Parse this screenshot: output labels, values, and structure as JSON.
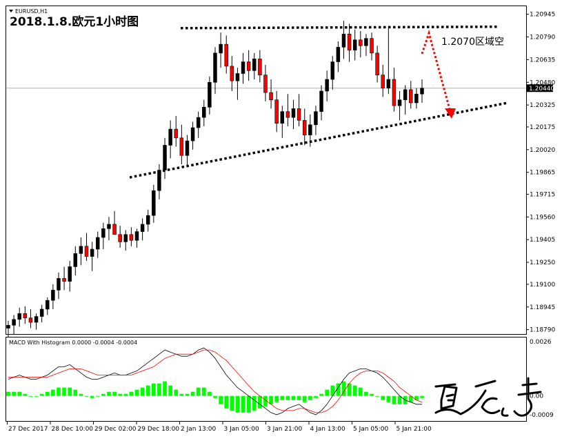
{
  "chart_data": {
    "type": "candlestick",
    "symbol_label": "EURUSD,H1",
    "title": "2018.1.8.欧元1小时图",
    "price_axis": {
      "ticks": [
        "1.20945",
        "1.20790",
        "1.20635",
        "1.20480",
        "1.20325",
        "1.20175",
        "1.20020",
        "1.19865",
        "1.19715",
        "1.19560",
        "1.19405",
        "1.19250",
        "1.19100",
        "1.18945",
        "1.18790"
      ],
      "range": [
        1.1876,
        1.21
      ]
    },
    "current_price": "1.20440",
    "time_axis": [
      "27 Dec 2017",
      "28 Dec 10:00",
      "29 Dec 02:00",
      "29 Dec 18:00",
      "2 Jan 13:00",
      "3 Jan 05:00",
      "3 Jan 21:00",
      "4 Jan 13:00",
      "5 Jan 05:00",
      "5 Jan 21:00"
    ],
    "colors": {
      "bull": "#000000",
      "bear": "#ff0000",
      "trendline": "#000000",
      "arrow": "#ff0000",
      "macd_hist": "#00ff00",
      "macd_signal": "#ff0000"
    },
    "annotation": "1.2070区域空",
    "trendlines": [
      {
        "name": "resistance",
        "from": [
          "2 Jan 06:00",
          1.2085
        ],
        "to": [
          "6 Jan 02:00",
          1.2086
        ]
      },
      {
        "name": "support",
        "from": [
          "29 Dec 16:00",
          1.1983
        ],
        "to": [
          "6 Jan 02:00",
          1.2034
        ]
      }
    ],
    "candles": [
      [
        1.188,
        1.1885,
        1.1874,
        1.1882
      ],
      [
        1.1882,
        1.1889,
        1.1876,
        1.1886
      ],
      [
        1.1886,
        1.1894,
        1.1881,
        1.189
      ],
      [
        1.189,
        1.1895,
        1.1883,
        1.1887
      ],
      [
        1.1887,
        1.1893,
        1.188,
        1.1884
      ],
      [
        1.1884,
        1.189,
        1.1879,
        1.1888
      ],
      [
        1.1888,
        1.1896,
        1.1884,
        1.1893
      ],
      [
        1.1893,
        1.1901,
        1.1889,
        1.1899
      ],
      [
        1.1899,
        1.191,
        1.1893,
        1.1906
      ],
      [
        1.1906,
        1.1918,
        1.19,
        1.1914
      ],
      [
        1.1914,
        1.1922,
        1.1906,
        1.1912
      ],
      [
        1.1912,
        1.1926,
        1.1905,
        1.1922
      ],
      [
        1.1922,
        1.1936,
        1.1916,
        1.1931
      ],
      [
        1.1931,
        1.1942,
        1.1923,
        1.1936
      ],
      [
        1.1936,
        1.1945,
        1.1926,
        1.1929
      ],
      [
        1.1929,
        1.1939,
        1.1919,
        1.1934
      ],
      [
        1.1934,
        1.1946,
        1.1928,
        1.1942
      ],
      [
        1.1942,
        1.1952,
        1.1934,
        1.1948
      ],
      [
        1.1948,
        1.1956,
        1.194,
        1.1951
      ],
      [
        1.1951,
        1.196,
        1.1944,
        1.1944
      ],
      [
        1.1944,
        1.195,
        1.1935,
        1.1939
      ],
      [
        1.1939,
        1.1947,
        1.1933,
        1.1944
      ],
      [
        1.1944,
        1.1949,
        1.1936,
        1.194
      ],
      [
        1.194,
        1.1948,
        1.1935,
        1.1946
      ],
      [
        1.1946,
        1.1955,
        1.194,
        1.1951
      ],
      [
        1.1951,
        1.1961,
        1.1946,
        1.1957
      ],
      [
        1.1957,
        1.1978,
        1.1952,
        1.1974
      ],
      [
        1.1974,
        1.1992,
        1.1968,
        1.1988
      ],
      [
        1.1988,
        1.201,
        1.1982,
        1.2005
      ],
      [
        1.2005,
        1.2022,
        1.1996,
        1.2016
      ],
      [
        1.2016,
        1.2025,
        1.2004,
        1.201
      ],
      [
        1.201,
        1.2019,
        1.1992,
        1.1998
      ],
      [
        1.1998,
        1.2012,
        1.199,
        1.2008
      ],
      [
        1.2008,
        1.2021,
        1.2002,
        1.2017
      ],
      [
        1.2017,
        1.2028,
        1.201,
        1.2024
      ],
      [
        1.2024,
        1.2036,
        1.2018,
        1.2031
      ],
      [
        1.2031,
        1.2052,
        1.2026,
        1.2048
      ],
      [
        1.2048,
        1.2072,
        1.204,
        1.2068
      ],
      [
        1.2068,
        1.2082,
        1.2058,
        1.2074
      ],
      [
        1.2074,
        1.208,
        1.2054,
        1.2059
      ],
      [
        1.2059,
        1.2066,
        1.2042,
        1.2049
      ],
      [
        1.2049,
        1.2058,
        1.2036,
        1.2054
      ],
      [
        1.2054,
        1.2068,
        1.2047,
        1.2062
      ],
      [
        1.2062,
        1.207,
        1.2049,
        1.2056
      ],
      [
        1.2056,
        1.2068,
        1.205,
        1.2064
      ],
      [
        1.2064,
        1.207,
        1.2048,
        1.2053
      ],
      [
        1.2053,
        1.206,
        1.2035,
        1.2041
      ],
      [
        1.2041,
        1.205,
        1.203,
        1.2036
      ],
      [
        1.2036,
        1.2042,
        1.2014,
        1.202
      ],
      [
        1.202,
        1.2032,
        1.201,
        1.2028
      ],
      [
        1.2028,
        1.204,
        1.2018,
        1.2024
      ],
      [
        1.2024,
        1.2036,
        1.2016,
        1.203
      ],
      [
        1.203,
        1.204,
        1.2018,
        1.2022
      ],
      [
        1.2022,
        1.203,
        1.2005,
        1.2012
      ],
      [
        1.2012,
        1.2026,
        1.2004,
        1.2019
      ],
      [
        1.2019,
        1.2032,
        1.2012,
        1.2028
      ],
      [
        1.2028,
        1.2046,
        1.2022,
        1.2042
      ],
      [
        1.2042,
        1.2056,
        1.2035,
        1.205
      ],
      [
        1.205,
        1.2066,
        1.2043,
        1.2062
      ],
      [
        1.2062,
        1.2076,
        1.2055,
        1.2072
      ],
      [
        1.2072,
        1.209,
        1.2064,
        1.2081
      ],
      [
        1.2081,
        1.2088,
        1.2062,
        1.207
      ],
      [
        1.207,
        1.2084,
        1.2063,
        1.2077
      ],
      [
        1.2077,
        1.2083,
        1.2065,
        1.2073
      ],
      [
        1.2073,
        1.2081,
        1.2066,
        1.2078
      ],
      [
        1.2078,
        1.2082,
        1.2063,
        1.2068
      ],
      [
        1.2068,
        1.2073,
        1.2048,
        1.2053
      ],
      [
        1.2053,
        1.206,
        1.2038,
        1.2044
      ],
      [
        1.2044,
        1.2086,
        1.204,
        1.205
      ],
      [
        1.205,
        1.2058,
        1.2028,
        1.2032
      ],
      [
        1.2032,
        1.2042,
        1.2022,
        1.2036
      ],
      [
        1.2036,
        1.2046,
        1.2026,
        1.2043
      ],
      [
        1.2043,
        1.2049,
        1.203,
        1.2034
      ],
      [
        1.2034,
        1.2044,
        1.203,
        1.204
      ],
      [
        1.204,
        1.205,
        1.2034,
        1.2044
      ]
    ],
    "macd": {
      "title": "MACD With Histogram 0.0000 -0.0004 -0.0004",
      "ticks": [
        "0.0026",
        "0.00",
        "-0.0009"
      ],
      "range": [
        -0.0012,
        0.0028
      ],
      "macd_line": [
        0.0008,
        0.0009,
        0.001,
        0.0009,
        0.0008,
        0.0008,
        0.0009,
        0.001,
        0.0012,
        0.0014,
        0.0014,
        0.0015,
        0.0013,
        0.0011,
        0.0009,
        0.0008,
        0.0008,
        0.0009,
        0.001,
        0.0011,
        0.001,
        0.001,
        0.0011,
        0.0012,
        0.0014,
        0.0016,
        0.0018,
        0.002,
        0.0022,
        0.0021,
        0.002,
        0.0019,
        0.0019,
        0.002,
        0.0022,
        0.0023,
        0.0021,
        0.0018,
        0.0014,
        0.001,
        0.0007,
        0.0004,
        0.0002,
        0.0,
        -0.0002,
        -0.0004,
        -0.0006,
        -0.0008,
        -0.0009,
        -0.0008,
        -0.0006,
        -0.0005,
        -0.0004,
        -0.0006,
        -0.0008,
        -0.0009,
        -0.0007,
        -0.0004,
        0.0,
        0.0004,
        0.0008,
        0.0011,
        0.0012,
        0.0013,
        0.0013,
        0.0012,
        0.0011,
        0.0009,
        0.0006,
        0.0003,
        0.0,
        -0.0002,
        -0.0003,
        -0.0004,
        -0.0004
      ],
      "signal_line": [
        0.0009,
        0.0009,
        0.0009,
        0.0009,
        0.0009,
        0.0009,
        0.0009,
        0.0009,
        0.001,
        0.0011,
        0.0012,
        0.0013,
        0.0013,
        0.0013,
        0.0012,
        0.0011,
        0.001,
        0.001,
        0.001,
        0.001,
        0.001,
        0.001,
        0.001,
        0.0011,
        0.0012,
        0.0013,
        0.0014,
        0.0016,
        0.0018,
        0.0019,
        0.002,
        0.002,
        0.002,
        0.002,
        0.0021,
        0.0022,
        0.0022,
        0.0021,
        0.0019,
        0.0017,
        0.0014,
        0.0011,
        0.0008,
        0.0005,
        0.0002,
        0.0,
        -0.0002,
        -0.0004,
        -0.0006,
        -0.0007,
        -0.0007,
        -0.0007,
        -0.0006,
        -0.0006,
        -0.0007,
        -0.0008,
        -0.0008,
        -0.0007,
        -0.0005,
        -0.0002,
        0.0002,
        0.0006,
        0.0009,
        0.0011,
        0.0012,
        0.0012,
        0.0012,
        0.0011,
        0.0009,
        0.0007,
        0.0004,
        0.0002,
        0.0,
        -0.0002,
        -0.0003
      ],
      "histogram": [
        0.0002,
        0.0002,
        0.0002,
        0.0001,
        0.0,
        0.0,
        0.0001,
        0.0002,
        0.0003,
        0.0004,
        0.0004,
        0.0004,
        0.0003,
        0.0001,
        0.0,
        -0.0001,
        0.0,
        0.0001,
        0.0002,
        0.0002,
        0.0001,
        0.0001,
        0.0002,
        0.0003,
        0.0004,
        0.0005,
        0.0006,
        0.0006,
        0.0007,
        0.0005,
        0.0003,
        0.0001,
        0.0001,
        0.0002,
        0.0004,
        0.0004,
        0.0002,
        -0.0001,
        -0.0004,
        -0.0006,
        -0.0007,
        -0.0008,
        -0.0008,
        -0.0008,
        -0.0007,
        -0.0006,
        -0.0005,
        -0.0004,
        -0.0003,
        -0.0002,
        -0.0002,
        -0.0002,
        -0.0002,
        -0.0003,
        -0.0002,
        -0.0001,
        0.0001,
        0.0003,
        0.0005,
        0.0006,
        0.0007,
        0.0006,
        0.0005,
        0.0004,
        0.0002,
        0.0001,
        0.0,
        -0.0002,
        -0.0003,
        -0.0004,
        -0.0004,
        -0.0004,
        -0.0003,
        -0.0002,
        -0.0001
      ]
    }
  }
}
